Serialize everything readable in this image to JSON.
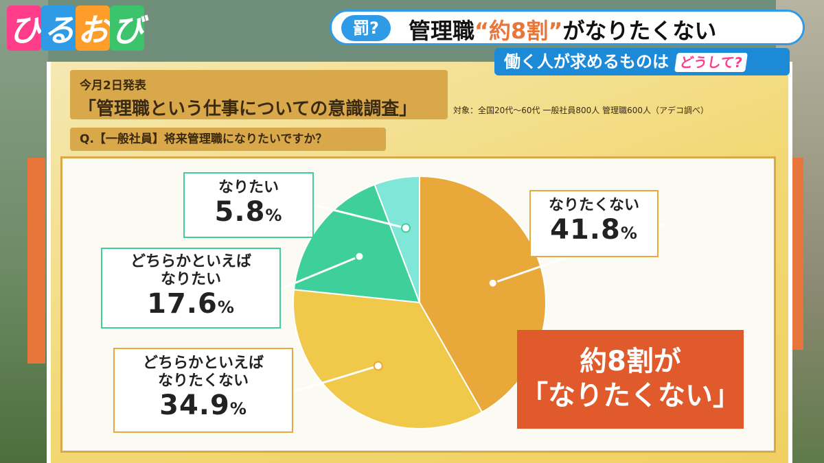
{
  "logo": {
    "chars": [
      "ひ",
      "る",
      "お",
      "び"
    ],
    "colors": [
      "#ff3d8a",
      "#2f9be6",
      "#ff9d2a",
      "#3bc46b"
    ]
  },
  "header": {
    "badge": "罰?",
    "title_pre": "管理職",
    "title_highlight": "“約8割”",
    "title_post": "がなりたくない"
  },
  "subheader": {
    "text": "働く人が求めるものは",
    "chip": "どうして?"
  },
  "tag1": {
    "line1": "今月2日発表",
    "line2": "「管理職という仕事についての意識調査」"
  },
  "note": "対象：全国20代～60代 一般社員800人 管理職600人（アデコ調べ）",
  "question": "Q.【一般社員】将来管理職になりたいですか？",
  "chart_data": {
    "type": "pie",
    "title": "",
    "slices": [
      {
        "name": "なりたくない",
        "value": 41.8,
        "display": "41.8",
        "color": "#e8a93a"
      },
      {
        "name": "どちらかといえばなりたくない",
        "value": 34.9,
        "display": "34.9",
        "color": "#f0c84a"
      },
      {
        "name": "どちらかといえばなりたい",
        "value": 17.6,
        "display": "17.6",
        "color": "#3fcf9a"
      },
      {
        "name": "なりたい",
        "value": 5.8,
        "display": "5.8",
        "color": "#7fe6d8"
      }
    ],
    "labels": [
      {
        "lines": [
          "なりたくない"
        ],
        "value": "41.8",
        "unit": "%"
      },
      {
        "lines": [
          "どちらかといえば",
          "なりたくない"
        ],
        "value": "34.9",
        "unit": "%"
      },
      {
        "lines": [
          "どちらかといえば",
          "なりたい"
        ],
        "value": "17.6",
        "unit": "%"
      },
      {
        "lines": [
          "なりたい"
        ],
        "value": "5.8",
        "unit": "%"
      }
    ]
  },
  "callout": {
    "line1": "約8割が",
    "line2": "「なりたくない」"
  }
}
